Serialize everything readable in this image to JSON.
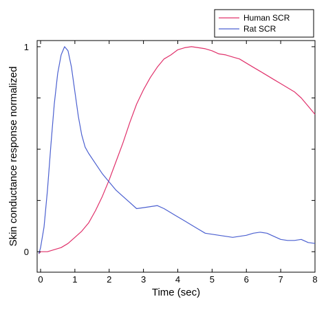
{
  "colors": {
    "human": "#e0306a",
    "rat": "#4a5fd0",
    "axis": "#000000"
  },
  "chart_data": {
    "type": "line",
    "title": "",
    "xlabel": "Time (sec)",
    "ylabel": "Skin conductance response normalized",
    "xlim": [
      -0.1,
      8
    ],
    "ylim": [
      -0.1,
      1.03
    ],
    "xticks": [
      0,
      1,
      2,
      3,
      4,
      5,
      6,
      7,
      8
    ],
    "xtick_labels": [
      "0",
      "1",
      "2",
      "3",
      "4",
      "5",
      "6",
      "7",
      "8"
    ],
    "yticks": [
      0,
      1
    ],
    "ytick_labels": [
      "0",
      "1"
    ],
    "grid": false,
    "legend_position": "top-right",
    "series": [
      {
        "name": "Human SCR",
        "color": "#e0306a",
        "x": [
          -0.05,
          0.0,
          0.2,
          0.4,
          0.6,
          0.8,
          1.0,
          1.2,
          1.4,
          1.6,
          1.8,
          2.0,
          2.2,
          2.4,
          2.6,
          2.8,
          3.0,
          3.2,
          3.4,
          3.6,
          3.8,
          4.0,
          4.2,
          4.4,
          4.6,
          4.8,
          5.0,
          5.2,
          5.4,
          5.6,
          5.8,
          6.0,
          6.2,
          6.4,
          6.6,
          6.8,
          7.0,
          7.2,
          7.4,
          7.6,
          7.8,
          8.0
        ],
        "y": [
          -0.01,
          0.0,
          0.0,
          0.01,
          0.02,
          0.04,
          0.07,
          0.1,
          0.14,
          0.2,
          0.27,
          0.35,
          0.44,
          0.53,
          0.63,
          0.72,
          0.79,
          0.85,
          0.9,
          0.94,
          0.96,
          0.985,
          0.995,
          1.0,
          0.995,
          0.99,
          0.98,
          0.965,
          0.96,
          0.95,
          0.94,
          0.92,
          0.9,
          0.88,
          0.86,
          0.84,
          0.82,
          0.8,
          0.78,
          0.75,
          0.71,
          0.67
        ]
      },
      {
        "name": "Rat SCR",
        "color": "#4a5fd0",
        "x": [
          -0.05,
          0.0,
          0.1,
          0.2,
          0.3,
          0.4,
          0.5,
          0.6,
          0.7,
          0.8,
          0.9,
          1.0,
          1.1,
          1.2,
          1.3,
          1.4,
          1.6,
          1.8,
          2.0,
          2.2,
          2.4,
          2.6,
          2.8,
          3.0,
          3.2,
          3.4,
          3.6,
          3.8,
          4.0,
          4.2,
          4.4,
          4.6,
          4.8,
          5.0,
          5.2,
          5.4,
          5.6,
          5.8,
          6.0,
          6.2,
          6.4,
          6.6,
          6.8,
          7.0,
          7.2,
          7.4,
          7.6,
          7.8,
          8.0
        ],
        "y": [
          -0.01,
          0.02,
          0.12,
          0.3,
          0.52,
          0.72,
          0.87,
          0.96,
          1.0,
          0.98,
          0.9,
          0.78,
          0.66,
          0.57,
          0.51,
          0.48,
          0.43,
          0.38,
          0.34,
          0.3,
          0.27,
          0.24,
          0.21,
          0.215,
          0.22,
          0.225,
          0.21,
          0.19,
          0.17,
          0.15,
          0.13,
          0.11,
          0.09,
          0.085,
          0.08,
          0.075,
          0.07,
          0.075,
          0.08,
          0.09,
          0.095,
          0.09,
          0.075,
          0.06,
          0.055,
          0.055,
          0.06,
          0.045,
          0.04
        ]
      }
    ]
  }
}
